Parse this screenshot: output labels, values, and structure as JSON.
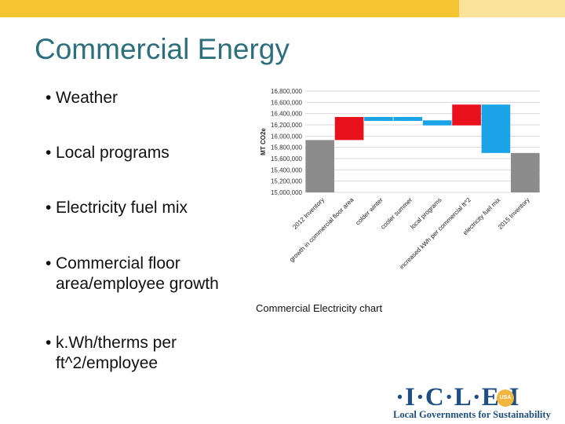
{
  "slide": {
    "title": "Commercial Energy",
    "bullets": [
      [
        "Weather"
      ],
      [
        "Local programs"
      ],
      [
        "Electricity fuel mix"
      ],
      [
        "Commercial floor",
        "area/employee growth"
      ],
      [
        "k.Wh/therms per",
        "ft^2/employee"
      ]
    ],
    "bullet_glyph": "•",
    "caption": "Commercial Electricity chart",
    "logo": {
      "wordmark": "·I·C·L·E·I",
      "badge": "USA",
      "tagline": "Local Governments for Sustainability"
    },
    "colors": {
      "title": "#2e6f7e",
      "topbar": "#f5c431",
      "topbar_light": "#f9e39a"
    }
  },
  "chart_data": {
    "type": "bar",
    "subtype": "waterfall",
    "ylabel": "MT CO2e",
    "ylim": [
      15000000,
      16800000
    ],
    "yticks": [
      15000000,
      15200000,
      15400000,
      15600000,
      15800000,
      16000000,
      16200000,
      16400000,
      16600000,
      16800000
    ],
    "ytick_labels": [
      "15,000,000",
      "15,200,000",
      "15,400,000",
      "15,600,000",
      "15,800,000",
      "16,000,000",
      "16,200,000",
      "16,400,000",
      "16,600,000",
      "16,800,000"
    ],
    "categories": [
      "2012 Inventory",
      "growth in commercial floor area",
      "colder winter",
      "cooler summer",
      "local programs",
      "increased kWh per commercial ft^2",
      "electricity fuel mix",
      "2015 Inventory"
    ],
    "bars": [
      {
        "start": 15000000,
        "end": 15930000,
        "color": "#8c8c8c"
      },
      {
        "start": 15930000,
        "end": 16340000,
        "color": "#e8111c"
      },
      {
        "start": 16340000,
        "end": 16340000,
        "color": "#1aa3e6"
      },
      {
        "start": 16340000,
        "end": 16280000,
        "color": "#1aa3e6"
      },
      {
        "start": 16280000,
        "end": 16190000,
        "color": "#1aa3e6"
      },
      {
        "start": 16190000,
        "end": 16560000,
        "color": "#e8111c"
      },
      {
        "start": 16560000,
        "end": 15700000,
        "color": "#1aa3e6"
      },
      {
        "start": 15000000,
        "end": 15700000,
        "color": "#8c8c8c"
      }
    ],
    "grid": true,
    "legend": "none"
  }
}
